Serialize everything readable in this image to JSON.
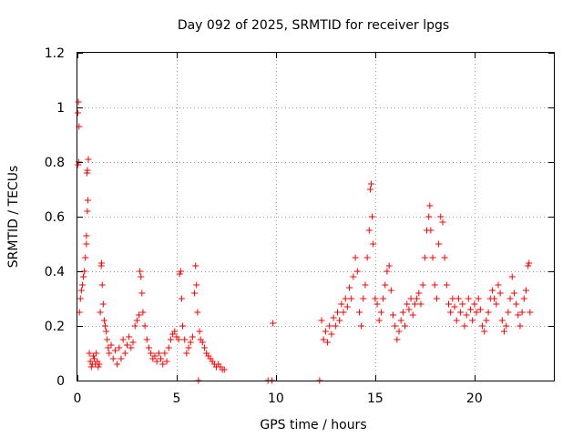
{
  "chart_data": {
    "type": "scatter",
    "title": "Day 092 of 2025, SRMTID for receiver lpgs",
    "xlabel": "GPS time / hours",
    "ylabel": "SRMTID / TECUs",
    "xlim": [
      0,
      24
    ],
    "ylim": [
      0,
      1.2
    ],
    "x_ticks": [
      0,
      5,
      10,
      15,
      20
    ],
    "x_tick_labels": [
      "0",
      "5",
      "10",
      "15",
      "20"
    ],
    "y_ticks": [
      0,
      0.2,
      0.4,
      0.6,
      0.8,
      1.0,
      1.2
    ],
    "y_tick_labels": [
      "0",
      "0.2",
      "0.4",
      "0.6",
      "0.8",
      "1",
      "1.2"
    ],
    "grid": true,
    "marker": "plus",
    "series": [
      {
        "name": "SRMTID",
        "color": "#ff0000",
        "points": [
          [
            0.02,
            0.98
          ],
          [
            0.05,
            1.02
          ],
          [
            0.08,
            0.93
          ],
          [
            0.03,
            0.79
          ],
          [
            0.06,
            0.8
          ],
          [
            0.1,
            0.25
          ],
          [
            0.15,
            0.3
          ],
          [
            0.2,
            0.33
          ],
          [
            0.25,
            0.35
          ],
          [
            0.3,
            0.38
          ],
          [
            0.35,
            0.4
          ],
          [
            0.4,
            0.45
          ],
          [
            0.45,
            0.5
          ],
          [
            0.5,
            0.62
          ],
          [
            0.52,
            0.66
          ],
          [
            0.55,
            0.81
          ],
          [
            0.48,
            0.76
          ],
          [
            0.5,
            0.77
          ],
          [
            0.45,
            0.53
          ],
          [
            0.6,
            0.1
          ],
          [
            0.65,
            0.07
          ],
          [
            0.7,
            0.05
          ],
          [
            0.75,
            0.06
          ],
          [
            0.8,
            0.09
          ],
          [
            0.85,
            0.08
          ],
          [
            0.9,
            0.06
          ],
          [
            0.95,
            0.1
          ],
          [
            1.0,
            0.07
          ],
          [
            1.05,
            0.05
          ],
          [
            1.1,
            0.06
          ],
          [
            1.15,
            0.25
          ],
          [
            1.2,
            0.42
          ],
          [
            1.22,
            0.43
          ],
          [
            1.25,
            0.35
          ],
          [
            1.3,
            0.28
          ],
          [
            1.35,
            0.22
          ],
          [
            1.4,
            0.2
          ],
          [
            1.45,
            0.18
          ],
          [
            1.5,
            0.15
          ],
          [
            1.55,
            0.12
          ],
          [
            1.6,
            0.1
          ],
          [
            1.7,
            0.13
          ],
          [
            1.8,
            0.08
          ],
          [
            1.9,
            0.11
          ],
          [
            2.0,
            0.06
          ],
          [
            2.1,
            0.12
          ],
          [
            2.2,
            0.08
          ],
          [
            2.3,
            0.15
          ],
          [
            2.4,
            0.1
          ],
          [
            2.5,
            0.13
          ],
          [
            2.6,
            0.16
          ],
          [
            2.7,
            0.12
          ],
          [
            2.8,
            0.14
          ],
          [
            2.9,
            0.2
          ],
          [
            3.0,
            0.22
          ],
          [
            3.1,
            0.24
          ],
          [
            3.15,
            0.4
          ],
          [
            3.2,
            0.38
          ],
          [
            3.25,
            0.32
          ],
          [
            3.3,
            0.25
          ],
          [
            3.4,
            0.2
          ],
          [
            3.5,
            0.15
          ],
          [
            3.6,
            0.12
          ],
          [
            3.7,
            0.1
          ],
          [
            3.8,
            0.08
          ],
          [
            3.9,
            0.09
          ],
          [
            4.0,
            0.07
          ],
          [
            4.1,
            0.1
          ],
          [
            4.2,
            0.08
          ],
          [
            4.3,
            0.06
          ],
          [
            4.4,
            0.1
          ],
          [
            4.5,
            0.07
          ],
          [
            4.6,
            0.12
          ],
          [
            4.7,
            0.15
          ],
          [
            4.8,
            0.17
          ],
          [
            4.9,
            0.18
          ],
          [
            5.0,
            0.16
          ],
          [
            5.1,
            0.15
          ],
          [
            5.15,
            0.39
          ],
          [
            5.2,
            0.4
          ],
          [
            5.25,
            0.3
          ],
          [
            5.3,
            0.2
          ],
          [
            5.4,
            0.15
          ],
          [
            5.5,
            0.1
          ],
          [
            5.6,
            0.12
          ],
          [
            5.7,
            0.14
          ],
          [
            5.8,
            0.16
          ],
          [
            5.9,
            0.32
          ],
          [
            5.95,
            0.42
          ],
          [
            6.0,
            0.35
          ],
          [
            6.05,
            0.25
          ],
          [
            6.1,
            0.0
          ],
          [
            6.15,
            0.18
          ],
          [
            6.2,
            0.15
          ],
          [
            6.3,
            0.14
          ],
          [
            6.4,
            0.12
          ],
          [
            6.5,
            0.1
          ],
          [
            6.6,
            0.09
          ],
          [
            6.7,
            0.08
          ],
          [
            6.8,
            0.07
          ],
          [
            6.9,
            0.06
          ],
          [
            7.0,
            0.05
          ],
          [
            7.1,
            0.06
          ],
          [
            7.2,
            0.05
          ],
          [
            7.3,
            0.04
          ],
          [
            7.4,
            0.04
          ],
          [
            9.6,
            0.0
          ],
          [
            9.8,
            0.0
          ],
          [
            9.85,
            0.21
          ],
          [
            12.2,
            0.0
          ],
          [
            12.3,
            0.22
          ],
          [
            12.4,
            0.15
          ],
          [
            12.5,
            0.18
          ],
          [
            12.6,
            0.14
          ],
          [
            12.7,
            0.2
          ],
          [
            12.8,
            0.17
          ],
          [
            12.9,
            0.23
          ],
          [
            13.0,
            0.2
          ],
          [
            13.1,
            0.25
          ],
          [
            13.2,
            0.22
          ],
          [
            13.3,
            0.28
          ],
          [
            13.4,
            0.25
          ],
          [
            13.5,
            0.3
          ],
          [
            13.6,
            0.27
          ],
          [
            13.7,
            0.34
          ],
          [
            13.8,
            0.3
          ],
          [
            13.9,
            0.38
          ],
          [
            14.0,
            0.45
          ],
          [
            14.1,
            0.4
          ],
          [
            14.2,
            0.25
          ],
          [
            14.3,
            0.2
          ],
          [
            14.4,
            0.3
          ],
          [
            14.5,
            0.35
          ],
          [
            14.6,
            0.45
          ],
          [
            14.7,
            0.55
          ],
          [
            14.75,
            0.7
          ],
          [
            14.8,
            0.72
          ],
          [
            14.85,
            0.6
          ],
          [
            14.9,
            0.5
          ],
          [
            15.0,
            0.3
          ],
          [
            15.1,
            0.28
          ],
          [
            15.2,
            0.22
          ],
          [
            15.3,
            0.25
          ],
          [
            15.4,
            0.3
          ],
          [
            15.5,
            0.35
          ],
          [
            15.6,
            0.4
          ],
          [
            15.7,
            0.42
          ],
          [
            15.8,
            0.33
          ],
          [
            15.9,
            0.24
          ],
          [
            16.0,
            0.2
          ],
          [
            16.1,
            0.15
          ],
          [
            16.2,
            0.18
          ],
          [
            16.3,
            0.22
          ],
          [
            16.4,
            0.25
          ],
          [
            16.5,
            0.2
          ],
          [
            16.6,
            0.28
          ],
          [
            16.7,
            0.26
          ],
          [
            16.8,
            0.3
          ],
          [
            16.9,
            0.24
          ],
          [
            17.0,
            0.28
          ],
          [
            17.1,
            0.3
          ],
          [
            17.2,
            0.32
          ],
          [
            17.3,
            0.28
          ],
          [
            17.4,
            0.35
          ],
          [
            17.5,
            0.45
          ],
          [
            17.6,
            0.55
          ],
          [
            17.7,
            0.6
          ],
          [
            17.75,
            0.64
          ],
          [
            17.8,
            0.55
          ],
          [
            17.9,
            0.45
          ],
          [
            18.0,
            0.35
          ],
          [
            18.1,
            0.3
          ],
          [
            18.2,
            0.5
          ],
          [
            18.3,
            0.6
          ],
          [
            18.4,
            0.58
          ],
          [
            18.5,
            0.45
          ],
          [
            18.6,
            0.35
          ],
          [
            18.7,
            0.28
          ],
          [
            18.8,
            0.25
          ],
          [
            18.9,
            0.3
          ],
          [
            19.0,
            0.27
          ],
          [
            19.1,
            0.22
          ],
          [
            19.2,
            0.3
          ],
          [
            19.3,
            0.25
          ],
          [
            19.4,
            0.28
          ],
          [
            19.5,
            0.2
          ],
          [
            19.6,
            0.24
          ],
          [
            19.7,
            0.3
          ],
          [
            19.8,
            0.26
          ],
          [
            19.9,
            0.22
          ],
          [
            20.0,
            0.28
          ],
          [
            20.1,
            0.25
          ],
          [
            20.2,
            0.3
          ],
          [
            20.3,
            0.26
          ],
          [
            20.4,
            0.2
          ],
          [
            20.5,
            0.18
          ],
          [
            20.6,
            0.22
          ],
          [
            20.7,
            0.25
          ],
          [
            20.8,
            0.3
          ],
          [
            20.9,
            0.33
          ],
          [
            21.0,
            0.3
          ],
          [
            21.1,
            0.28
          ],
          [
            21.2,
            0.35
          ],
          [
            21.3,
            0.32
          ],
          [
            21.4,
            0.22
          ],
          [
            21.5,
            0.18
          ],
          [
            21.6,
            0.2
          ],
          [
            21.7,
            0.25
          ],
          [
            21.8,
            0.3
          ],
          [
            21.9,
            0.38
          ],
          [
            22.0,
            0.32
          ],
          [
            22.1,
            0.28
          ],
          [
            22.2,
            0.24
          ],
          [
            22.3,
            0.2
          ],
          [
            22.4,
            0.25
          ],
          [
            22.5,
            0.3
          ],
          [
            22.6,
            0.33
          ],
          [
            22.7,
            0.42
          ],
          [
            22.75,
            0.43
          ],
          [
            22.8,
            0.25
          ]
        ]
      }
    ]
  }
}
